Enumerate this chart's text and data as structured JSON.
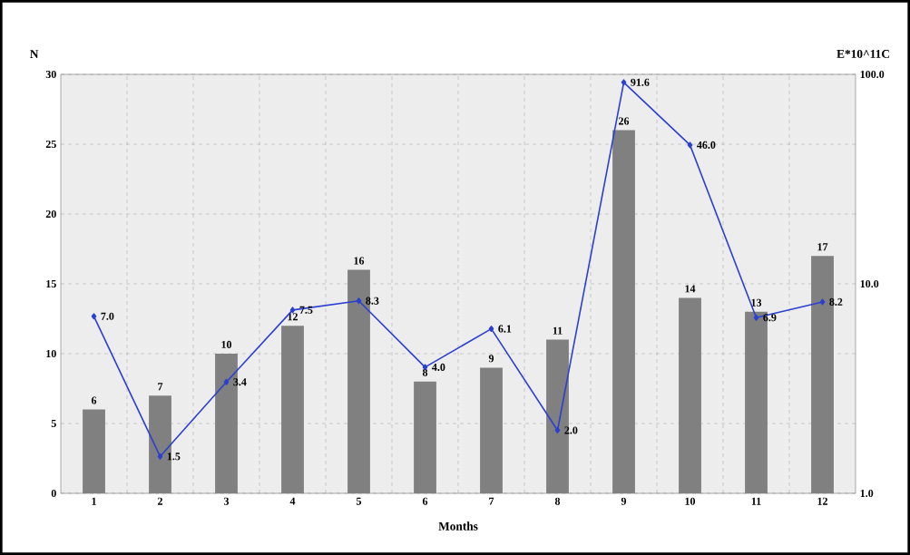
{
  "chart_data": {
    "type": "bar",
    "xlabel": "Months",
    "ylabel": "N",
    "y2label": "E*10^11C",
    "categories": [
      "1",
      "2",
      "3",
      "4",
      "5",
      "6",
      "7",
      "8",
      "9",
      "10",
      "11",
      "12"
    ],
    "series": [
      {
        "color": "#808080",
        "values": [
          6,
          7,
          10,
          12,
          16,
          8,
          9,
          11,
          26,
          14,
          13,
          17
        ],
        "value_labels": [
          "6",
          "7",
          "10",
          "12",
          "16",
          "8",
          "9",
          "11",
          "26",
          "14",
          "13",
          "17"
        ]
      },
      {
        "type": "line",
        "axis": "y2",
        "color": "#2b3fd0",
        "marker": "diamond",
        "line_style": "solid",
        "values": [
          7.0,
          1.5,
          3.4,
          7.5,
          8.3,
          4.0,
          6.1,
          2.0,
          91.6,
          46.0,
          6.9,
          8.2
        ],
        "value_labels": [
          "7.0",
          "1.5",
          "3.4",
          "7.5",
          "8.3",
          "4.0",
          "6.1",
          "2.0",
          "91.6",
          "46.0",
          "6.9",
          "8.2"
        ]
      }
    ],
    "ylim": [
      0,
      30
    ],
    "yticks": [
      0,
      5,
      10,
      15,
      20,
      25,
      30
    ],
    "y2lim": [
      1,
      100
    ],
    "y2ticks": [
      {
        "value": 1,
        "label": "1.0"
      },
      {
        "value": 10,
        "label": "10.0"
      },
      {
        "value": 100,
        "label": "100.0"
      }
    ],
    "log": "y2",
    "grid": true
  }
}
